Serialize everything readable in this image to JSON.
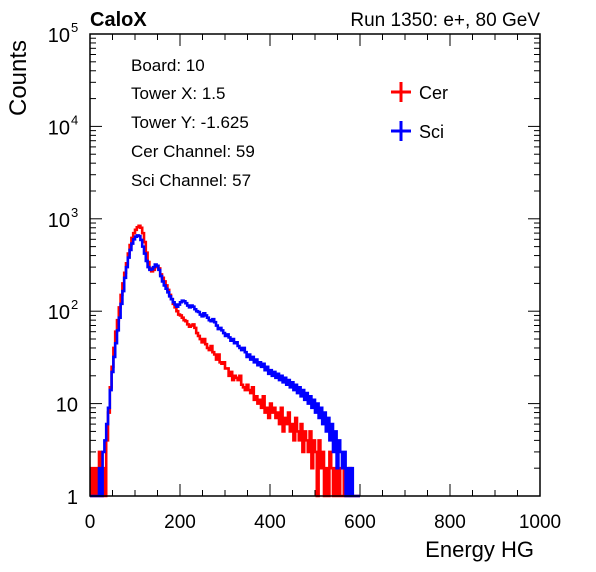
{
  "header": {
    "left": "CaloX",
    "right": "Run 1350: e+, 80 GeV"
  },
  "info_box": [
    "Board: 10",
    "Tower X: 1.5",
    "Tower Y: -1.625",
    "Cer Channel: 59",
    "Sci Channel: 57"
  ],
  "chart_data": {
    "type": "line",
    "style": "step histogram",
    "xlabel": "Energy HG",
    "ylabel": "Counts",
    "xlim": [
      0,
      1000
    ],
    "ylim": [
      1,
      100000
    ],
    "yscale": "log",
    "grid": false,
    "legend_position": "top-right",
    "x_ticks": [
      {
        "value": 0,
        "label": "0"
      },
      {
        "value": 200,
        "label": "200"
      },
      {
        "value": 400,
        "label": "400"
      },
      {
        "value": 600,
        "label": "600"
      },
      {
        "value": 800,
        "label": "800"
      },
      {
        "value": 1000,
        "label": "1000"
      }
    ],
    "y_ticks": [
      {
        "value": 1,
        "base": "1",
        "exp": ""
      },
      {
        "value": 10,
        "base": "10",
        "exp": ""
      },
      {
        "value": 100,
        "base": "10",
        "exp": "2"
      },
      {
        "value": 1000,
        "base": "10",
        "exp": "3"
      },
      {
        "value": 10000,
        "base": "10",
        "exp": "4"
      },
      {
        "value": 100000,
        "base": "10",
        "exp": "5"
      }
    ],
    "series": [
      {
        "name": "Cer",
        "color": "#ff0000",
        "points": [
          [
            0,
            1
          ],
          [
            4,
            2
          ],
          [
            8,
            1
          ],
          [
            12,
            2
          ],
          [
            16,
            1
          ],
          [
            20,
            3
          ],
          [
            24,
            1
          ],
          [
            28,
            2
          ],
          [
            32,
            1
          ],
          [
            36,
            4
          ],
          [
            40,
            8
          ],
          [
            44,
            15
          ],
          [
            48,
            25
          ],
          [
            52,
            40
          ],
          [
            56,
            60
          ],
          [
            60,
            80
          ],
          [
            64,
            110
          ],
          [
            68,
            150
          ],
          [
            72,
            200
          ],
          [
            76,
            260
          ],
          [
            80,
            330
          ],
          [
            84,
            420
          ],
          [
            88,
            520
          ],
          [
            92,
            620
          ],
          [
            96,
            700
          ],
          [
            100,
            760
          ],
          [
            104,
            810
          ],
          [
            108,
            840
          ],
          [
            112,
            800
          ],
          [
            116,
            700
          ],
          [
            120,
            560
          ],
          [
            124,
            430
          ],
          [
            128,
            340
          ],
          [
            132,
            290
          ],
          [
            136,
            270
          ],
          [
            140,
            280
          ],
          [
            144,
            300
          ],
          [
            148,
            310
          ],
          [
            152,
            290
          ],
          [
            156,
            250
          ],
          [
            160,
            230
          ],
          [
            164,
            210
          ],
          [
            168,
            190
          ],
          [
            172,
            170
          ],
          [
            176,
            150
          ],
          [
            180,
            135
          ],
          [
            184,
            120
          ],
          [
            188,
            110
          ],
          [
            192,
            100
          ],
          [
            196,
            92
          ],
          [
            200,
            90
          ],
          [
            204,
            85
          ],
          [
            208,
            80
          ],
          [
            212,
            78
          ],
          [
            216,
            72
          ],
          [
            220,
            68
          ],
          [
            224,
            70
          ],
          [
            228,
            72
          ],
          [
            232,
            66
          ],
          [
            236,
            58
          ],
          [
            240,
            54
          ],
          [
            244,
            50
          ],
          [
            248,
            46
          ],
          [
            252,
            50
          ],
          [
            256,
            44
          ],
          [
            260,
            40
          ],
          [
            264,
            38
          ],
          [
            268,
            42
          ],
          [
            272,
            36
          ],
          [
            276,
            34
          ],
          [
            280,
            30
          ],
          [
            284,
            34
          ],
          [
            288,
            28
          ],
          [
            292,
            27
          ],
          [
            296,
            28
          ],
          [
            300,
            24
          ],
          [
            304,
            24
          ],
          [
            308,
            20
          ],
          [
            312,
            22
          ],
          [
            316,
            18
          ],
          [
            320,
            20
          ],
          [
            324,
            19
          ],
          [
            328,
            18
          ],
          [
            332,
            20
          ],
          [
            336,
            16
          ],
          [
            340,
            15
          ],
          [
            344,
            14
          ],
          [
            348,
            16
          ],
          [
            352,
            14
          ],
          [
            356,
            13
          ],
          [
            360,
            15
          ],
          [
            364,
            11
          ],
          [
            368,
            12
          ],
          [
            372,
            10
          ],
          [
            376,
            11
          ],
          [
            380,
            9
          ],
          [
            384,
            12
          ],
          [
            388,
            8
          ],
          [
            392,
            9
          ],
          [
            396,
            7
          ],
          [
            400,
            10
          ],
          [
            404,
            8
          ],
          [
            408,
            9
          ],
          [
            412,
            7
          ],
          [
            416,
            8
          ],
          [
            420,
            6
          ],
          [
            424,
            9
          ],
          [
            428,
            5
          ],
          [
            432,
            7
          ],
          [
            436,
            6
          ],
          [
            440,
            8
          ],
          [
            444,
            5
          ],
          [
            448,
            6
          ],
          [
            452,
            4
          ],
          [
            456,
            7
          ],
          [
            460,
            5
          ],
          [
            464,
            4
          ],
          [
            468,
            6
          ],
          [
            472,
            3
          ],
          [
            476,
            5
          ],
          [
            480,
            4
          ],
          [
            484,
            3
          ],
          [
            488,
            5
          ],
          [
            492,
            2
          ],
          [
            496,
            4
          ],
          [
            500,
            3
          ],
          [
            504,
            1
          ],
          [
            508,
            4
          ],
          [
            512,
            2
          ],
          [
            516,
            3
          ],
          [
            520,
            1
          ],
          [
            524,
            2
          ],
          [
            528,
            1
          ],
          [
            532,
            3
          ],
          [
            536,
            2
          ],
          [
            540,
            1
          ],
          [
            544,
            2
          ],
          [
            548,
            1
          ],
          [
            552,
            2
          ],
          [
            556,
            1
          ],
          [
            560,
            1
          ],
          [
            564,
            2
          ],
          [
            568,
            1
          ],
          [
            572,
            1
          ],
          [
            576,
            2
          ],
          [
            580,
            1
          ],
          [
            584,
            1
          ],
          [
            588,
            1
          ],
          [
            592,
            1
          ],
          [
            596,
            1
          ]
        ]
      },
      {
        "name": "Sci",
        "color": "#0000ff",
        "points": [
          [
            0,
            1
          ],
          [
            4,
            1
          ],
          [
            8,
            1
          ],
          [
            12,
            1
          ],
          [
            16,
            1
          ],
          [
            20,
            2
          ],
          [
            24,
            1
          ],
          [
            28,
            3
          ],
          [
            32,
            4
          ],
          [
            36,
            6
          ],
          [
            40,
            9
          ],
          [
            44,
            14
          ],
          [
            48,
            22
          ],
          [
            52,
            32
          ],
          [
            56,
            45
          ],
          [
            60,
            62
          ],
          [
            64,
            85
          ],
          [
            68,
            120
          ],
          [
            72,
            165
          ],
          [
            76,
            230
          ],
          [
            80,
            300
          ],
          [
            84,
            380
          ],
          [
            88,
            460
          ],
          [
            92,
            540
          ],
          [
            96,
            600
          ],
          [
            100,
            640
          ],
          [
            104,
            660
          ],
          [
            108,
            650
          ],
          [
            112,
            590
          ],
          [
            116,
            500
          ],
          [
            120,
            420
          ],
          [
            124,
            350
          ],
          [
            128,
            300
          ],
          [
            132,
            280
          ],
          [
            136,
            285
          ],
          [
            140,
            300
          ],
          [
            144,
            320
          ],
          [
            148,
            310
          ],
          [
            152,
            280
          ],
          [
            156,
            240
          ],
          [
            160,
            210
          ],
          [
            164,
            190
          ],
          [
            168,
            175
          ],
          [
            172,
            160
          ],
          [
            176,
            145
          ],
          [
            180,
            135
          ],
          [
            184,
            125
          ],
          [
            188,
            118
          ],
          [
            192,
            112
          ],
          [
            196,
            118
          ],
          [
            200,
            125
          ],
          [
            204,
            130
          ],
          [
            208,
            128
          ],
          [
            212,
            122
          ],
          [
            216,
            115
          ],
          [
            220,
            110
          ],
          [
            224,
            115
          ],
          [
            228,
            112
          ],
          [
            232,
            105
          ],
          [
            236,
            100
          ],
          [
            240,
            98
          ],
          [
            244,
            92
          ],
          [
            248,
            88
          ],
          [
            252,
            95
          ],
          [
            256,
            90
          ],
          [
            260,
            85
          ],
          [
            264,
            80
          ],
          [
            268,
            78
          ],
          [
            272,
            82
          ],
          [
            276,
            76
          ],
          [
            280,
            70
          ],
          [
            284,
            64
          ],
          [
            288,
            66
          ],
          [
            292,
            62
          ],
          [
            296,
            58
          ],
          [
            300,
            54
          ],
          [
            304,
            56
          ],
          [
            308,
            52
          ],
          [
            312,
            48
          ],
          [
            316,
            50
          ],
          [
            320,
            45
          ],
          [
            324,
            46
          ],
          [
            328,
            42
          ],
          [
            332,
            40
          ],
          [
            336,
            38
          ],
          [
            340,
            40
          ],
          [
            344,
            36
          ],
          [
            348,
            32
          ],
          [
            352,
            34
          ],
          [
            356,
            30
          ],
          [
            360,
            32
          ],
          [
            364,
            28
          ],
          [
            368,
            30
          ],
          [
            372,
            26
          ],
          [
            376,
            28
          ],
          [
            380,
            25
          ],
          [
            384,
            27
          ],
          [
            388,
            23
          ],
          [
            392,
            25
          ],
          [
            396,
            21
          ],
          [
            400,
            23
          ],
          [
            404,
            20
          ],
          [
            408,
            22
          ],
          [
            412,
            19
          ],
          [
            416,
            21
          ],
          [
            420,
            18
          ],
          [
            424,
            20
          ],
          [
            428,
            17
          ],
          [
            432,
            19
          ],
          [
            436,
            16
          ],
          [
            440,
            18
          ],
          [
            444,
            15
          ],
          [
            448,
            17
          ],
          [
            452,
            14
          ],
          [
            456,
            16
          ],
          [
            460,
            13
          ],
          [
            464,
            15
          ],
          [
            468,
            12
          ],
          [
            472,
            14
          ],
          [
            476,
            11
          ],
          [
            480,
            13
          ],
          [
            484,
            10
          ],
          [
            488,
            12
          ],
          [
            492,
            9
          ],
          [
            496,
            11
          ],
          [
            500,
            8
          ],
          [
            504,
            10
          ],
          [
            508,
            7
          ],
          [
            512,
            9
          ],
          [
            516,
            6
          ],
          [
            520,
            8
          ],
          [
            524,
            5
          ],
          [
            528,
            7
          ],
          [
            532,
            4
          ],
          [
            536,
            6
          ],
          [
            540,
            3
          ],
          [
            544,
            5
          ],
          [
            548,
            2
          ],
          [
            552,
            4
          ],
          [
            556,
            3
          ],
          [
            560,
            2
          ],
          [
            564,
            3
          ],
          [
            568,
            1
          ],
          [
            572,
            2
          ],
          [
            576,
            1
          ],
          [
            580,
            2
          ],
          [
            584,
            1
          ],
          [
            588,
            1
          ],
          [
            592,
            1
          ],
          [
            596,
            1
          ]
        ]
      }
    ]
  }
}
